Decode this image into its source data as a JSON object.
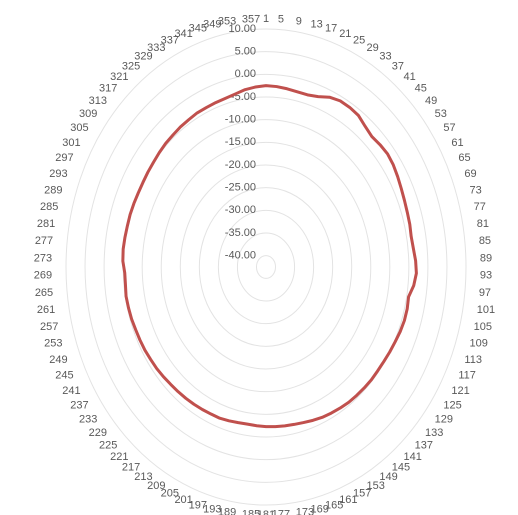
{
  "chart_data": {
    "type": "radar",
    "categories": [
      "1",
      "5",
      "9",
      "13",
      "17",
      "21",
      "25",
      "29",
      "33",
      "37",
      "41",
      "45",
      "49",
      "53",
      "57",
      "61",
      "65",
      "69",
      "73",
      "77",
      "81",
      "85",
      "89",
      "93",
      "97",
      "101",
      "105",
      "109",
      "113",
      "117",
      "121",
      "125",
      "129",
      "133",
      "137",
      "141",
      "145",
      "149",
      "153",
      "157",
      "161",
      "165",
      "169",
      "173",
      "177",
      "181",
      "185",
      "189",
      "193",
      "197",
      "201",
      "205",
      "209",
      "213",
      "217",
      "221",
      "225",
      "229",
      "233",
      "237",
      "241",
      "245",
      "249",
      "253",
      "257",
      "261",
      "265",
      "269",
      "273",
      "277",
      "281",
      "285",
      "289",
      "293",
      "297",
      "301",
      "305",
      "309",
      "313",
      "317",
      "321",
      "325",
      "329",
      "333",
      "337",
      "341",
      "345",
      "349",
      "353",
      "357"
    ],
    "series": [
      {
        "color": "#c0504d",
        "values": [
          -2.5,
          -2.6,
          -2.8,
          -3,
          -3,
          -2.5,
          -1.5,
          -1,
          -1,
          -1.2,
          -2,
          -2.5,
          -2.2,
          -2,
          -2.2,
          -2.6,
          -3,
          -3.3,
          -3.5,
          -3.6,
          -3.8,
          -3.6,
          -3.2,
          -3,
          -3.5,
          -4.5,
          -4.3,
          -4.3,
          -4.5,
          -4.8,
          -5,
          -5.2,
          -5.3,
          -5.3,
          -5.4,
          -5.5,
          -5.6,
          -5.8,
          -6,
          -6.2,
          -6.5,
          -6.8,
          -7,
          -7.1,
          -7.2,
          -7.3,
          -7.4,
          -7.5,
          -7.4,
          -7.2,
          -7,
          -7,
          -6.9,
          -6.8,
          -6.7,
          -6.6,
          -6.5,
          -6.3,
          -6.1,
          -6,
          -5.8,
          -5.7,
          -5.6,
          -5.4,
          -5.3,
          -5.2,
          -5.4,
          -5.4,
          -4.9,
          -4.8,
          -4.9,
          -5,
          -5,
          -5.1,
          -5.2,
          -5.2,
          -5.1,
          -5,
          -4.8,
          -4.6,
          -4.5,
          -4.3,
          -4.2,
          -4,
          -4,
          -3.9,
          -3.8,
          -3.5,
          -3,
          -2.7
        ]
      }
    ],
    "ylim": [
      -42.5,
      10
    ],
    "yticks": [
      {
        "value": 10,
        "label": "10.00"
      },
      {
        "value": 5,
        "label": "5.00"
      },
      {
        "value": 0,
        "label": "0.00"
      },
      {
        "value": -5,
        "label": "-5.00"
      },
      {
        "value": -10,
        "label": "-10.00"
      },
      {
        "value": -15,
        "label": "-15.00"
      },
      {
        "value": -20,
        "label": "-20.00"
      },
      {
        "value": -25,
        "label": "-25.00"
      },
      {
        "value": -30,
        "label": "-30.00"
      },
      {
        "value": -35,
        "label": "-35.00"
      },
      {
        "value": -40,
        "label": "-40.00"
      }
    ],
    "grid": true
  }
}
